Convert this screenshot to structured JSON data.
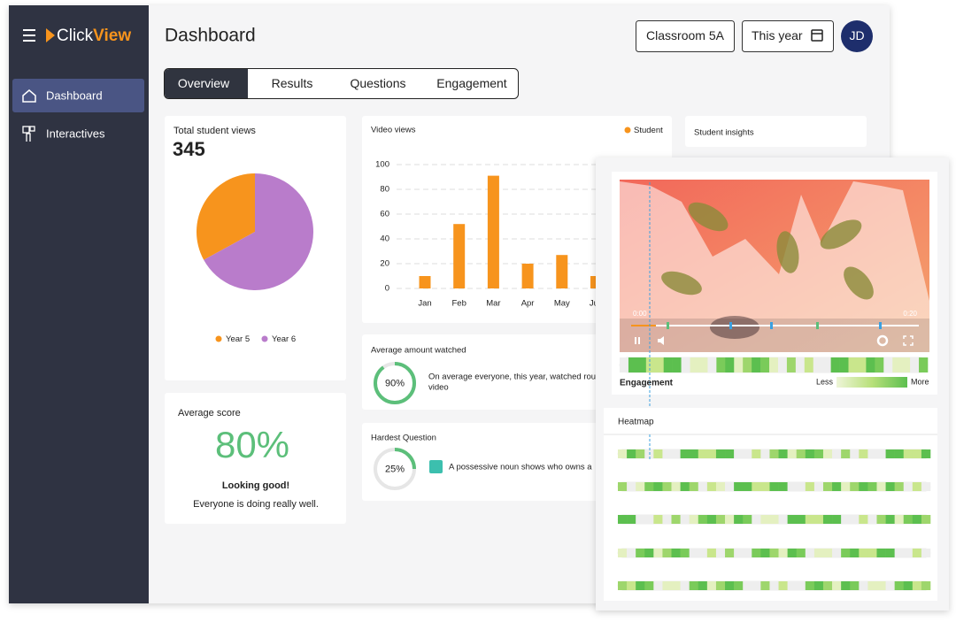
{
  "sidebar": {
    "brand_prefix": "Click",
    "brand_suffix": "View",
    "nav": [
      "Dashboard",
      "Interactives"
    ]
  },
  "header": {
    "title": "Dashboard",
    "class_filter": "Classroom 5A",
    "period_filter": "This year",
    "avatar": "JD"
  },
  "tabs": [
    "Overview",
    "Results",
    "Questions",
    "Engagement"
  ],
  "chart_data": [
    {
      "type": "pie",
      "title": "Total student views",
      "total": 345,
      "categories": [
        "Year 5",
        "Year 6"
      ],
      "values": [
        33,
        67
      ],
      "colors": [
        "#f7941d",
        "#b97ccb"
      ]
    },
    {
      "type": "bar",
      "title": "Video views",
      "categories": [
        "Jan",
        "Feb",
        "Mar",
        "Apr",
        "May",
        "Jun"
      ],
      "series": [
        {
          "name": "Student",
          "color": "#f7941d",
          "values": [
            10,
            52,
            91,
            20,
            27,
            10
          ]
        }
      ],
      "ylim": [
        0,
        100
      ],
      "yticks": [
        0,
        20,
        40,
        60,
        80,
        100
      ],
      "grid": true
    }
  ],
  "average_score": {
    "title": "Average score",
    "value": "80%",
    "headline": "Looking good!",
    "message": "Everyone is doing really well."
  },
  "average_watched": {
    "title": "Average amount watched",
    "value": 90,
    "label": "90%",
    "text": [
      "On average everyone, this year, watched roughly",
      "video"
    ]
  },
  "hardest_question": {
    "title": "Hardest Question",
    "value": 25,
    "label": "25%",
    "question": "A possessive noun shows who owns a"
  },
  "student_insights": {
    "title": "Student insights"
  },
  "player": {
    "start": "0:00",
    "end": "0:20",
    "engagement_title": "Engagement",
    "less": "Less",
    "more": "More"
  },
  "heatmap": {
    "title": "Heatmap"
  }
}
